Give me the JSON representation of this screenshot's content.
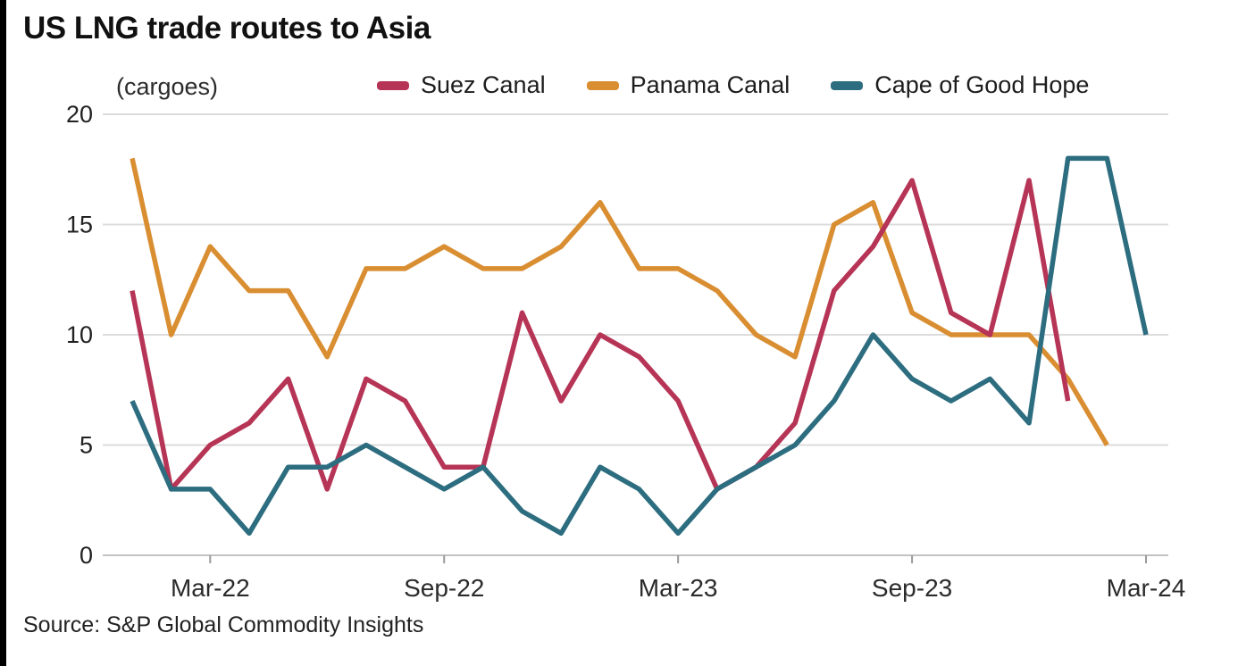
{
  "chart_data": {
    "type": "line",
    "title": "US LNG trade routes to Asia",
    "unit_label": "(cargoes)",
    "source": "Source: S&P Global Commodity Insights",
    "legend_position": "top",
    "grid": true,
    "ylim": [
      0,
      20
    ],
    "yticks": [
      0,
      5,
      10,
      15,
      20
    ],
    "x": [
      "Jan-22",
      "Feb-22",
      "Mar-22",
      "Apr-22",
      "May-22",
      "Jun-22",
      "Jul-22",
      "Aug-22",
      "Sep-22",
      "Oct-22",
      "Nov-22",
      "Dec-22",
      "Jan-23",
      "Feb-23",
      "Mar-23",
      "Apr-23",
      "May-23",
      "Jun-23",
      "Jul-23",
      "Aug-23",
      "Sep-23",
      "Oct-23",
      "Nov-23",
      "Dec-23",
      "Jan-24",
      "Feb-24",
      "Mar-24"
    ],
    "x_ticks": [
      {
        "index": 2,
        "label": "Mar-22"
      },
      {
        "index": 8,
        "label": "Sep-22"
      },
      {
        "index": 14,
        "label": "Mar-23"
      },
      {
        "index": 20,
        "label": "Sep-23"
      },
      {
        "index": 26,
        "label": "Mar-24"
      }
    ],
    "series": [
      {
        "name": "Suez Canal",
        "color": "#b63455",
        "values": [
          12,
          3,
          5,
          6,
          8,
          3,
          8,
          7,
          4,
          4,
          11,
          7,
          10,
          9,
          7,
          3,
          4,
          6,
          12,
          14,
          17,
          11,
          10,
          17,
          7,
          null,
          null
        ]
      },
      {
        "name": "Panama Canal",
        "color": "#d98e32",
        "values": [
          18,
          10,
          14,
          12,
          12,
          9,
          13,
          13,
          14,
          13,
          13,
          14,
          16,
          13,
          13,
          12,
          10,
          9,
          15,
          16,
          11,
          10,
          10,
          10,
          8,
          5,
          null
        ]
      },
      {
        "name": "Cape of Good Hope",
        "color": "#2d6d80",
        "values": [
          7,
          3,
          3,
          1,
          4,
          4,
          5,
          4,
          3,
          4,
          2,
          1,
          4,
          3,
          1,
          3,
          4,
          5,
          7,
          10,
          8,
          7,
          8,
          6,
          18,
          18,
          10
        ]
      }
    ]
  }
}
